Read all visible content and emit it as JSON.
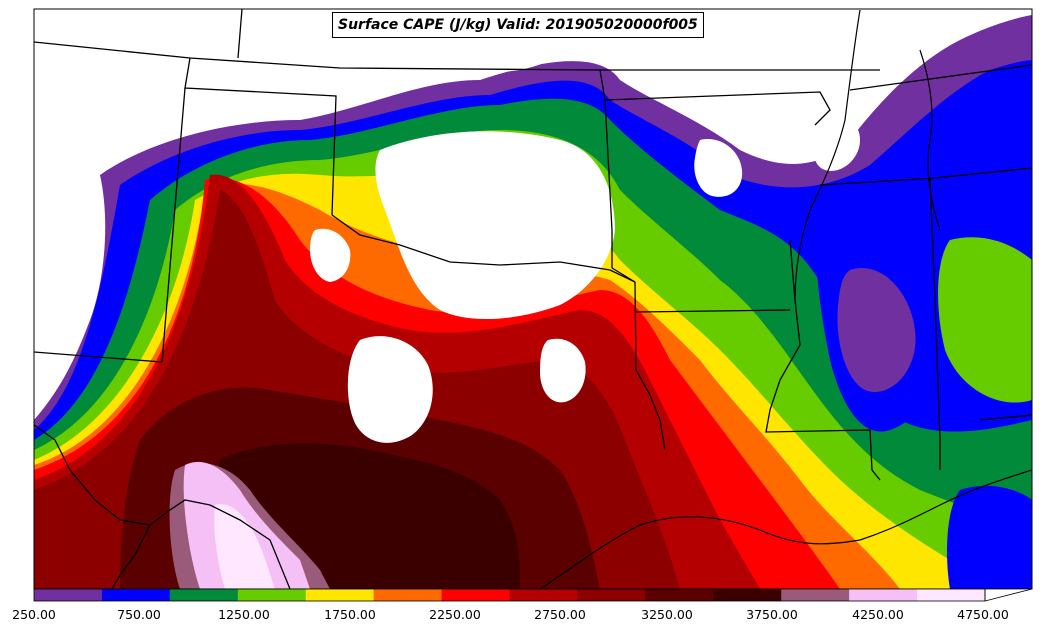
{
  "title": "Surface CAPE (J/kg) Valid: 201905020000f005",
  "colorbar": {
    "ticks": [
      "250.00",
      "750.00",
      "1250.00",
      "1750.00",
      "2250.00",
      "2750.00",
      "3250.00",
      "3750.00",
      "4250.00",
      "4750.00"
    ],
    "colors": [
      "#7030a0",
      "#0000ff",
      "#008a3a",
      "#66cc00",
      "#ffe600",
      "#ff6a00",
      "#ff0000",
      "#b40000",
      "#8c0000",
      "#5a0000",
      "#3a0000",
      "#9a5a7a",
      "#f5c0f5",
      "#ffe8ff"
    ]
  }
}
